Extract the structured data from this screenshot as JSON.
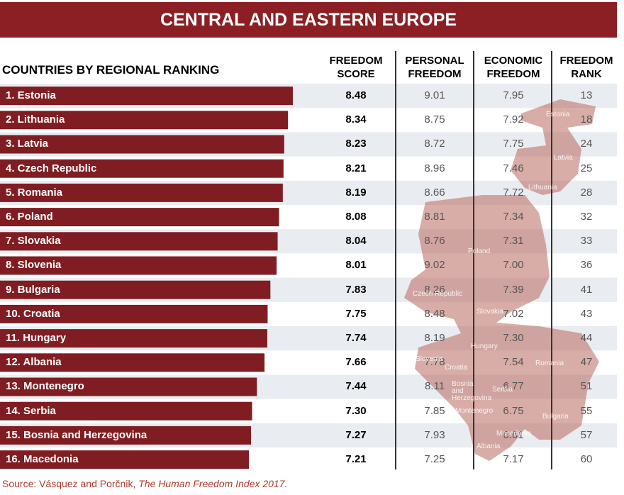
{
  "title": "CENTRAL AND EASTERN EUROPE",
  "chart_data": {
    "type": "bar",
    "orientation": "horizontal",
    "title": "COUNTRIES BY REGIONAL RANKING",
    "color": "#7f1d22",
    "categories": [
      "1. Estonia",
      "2. Lithuania",
      "3. Latvia",
      "4. Czech Republic",
      "5. Romania",
      "6. Poland",
      "7. Slovakia",
      "8. Slovenia",
      "9. Bulgaria",
      "10. Croatia",
      "11. Hungary",
      "12. Albania",
      "13. Montenegro",
      "14. Serbia",
      "15. Bosnia and Herzegovina",
      "16. Macedonia"
    ],
    "columns": [
      {
        "name": "FREEDOM SCORE",
        "values": [
          8.48,
          8.34,
          8.23,
          8.21,
          8.19,
          8.08,
          8.04,
          8.01,
          7.83,
          7.75,
          7.74,
          7.66,
          7.44,
          7.3,
          7.27,
          7.21
        ],
        "value_labels": [
          "8.48",
          "8.34",
          "8.23",
          "8.21",
          "8.19",
          "8.08",
          "8.04",
          "8.01",
          "7.83",
          "7.75",
          "7.74",
          "7.66",
          "7.44",
          "7.30",
          "7.27",
          "7.21"
        ]
      },
      {
        "name": "PERSONAL FREEDOM",
        "values": [
          9.01,
          8.75,
          8.72,
          8.96,
          8.66,
          8.81,
          8.76,
          9.02,
          8.26,
          8.48,
          8.19,
          7.78,
          8.11,
          7.85,
          7.93,
          7.25
        ],
        "value_labels": [
          "9.01",
          "8.75",
          "8.72",
          "8.96",
          "8.66",
          "8.81",
          "8.76",
          "9.02",
          "8.26",
          "8.48",
          "8.19",
          "7.78",
          "8.11",
          "7.85",
          "7.93",
          "7.25"
        ]
      },
      {
        "name": "ECONOMIC FREEDOM",
        "values": [
          7.95,
          7.92,
          7.75,
          7.46,
          7.72,
          7.34,
          7.31,
          7.0,
          7.39,
          7.02,
          7.3,
          7.54,
          6.77,
          6.75,
          6.61,
          7.17
        ],
        "value_labels": [
          "7.95",
          "7.92",
          "7.75",
          "7.46",
          "7.72",
          "7.34",
          "7.31",
          "7.00",
          "7.39",
          "7.02",
          "7.30",
          "7.54",
          "6.77",
          "6.75",
          "6.61",
          "7.17"
        ]
      },
      {
        "name": "FREEDOM RANK",
        "values": [
          13,
          18,
          24,
          25,
          28,
          32,
          33,
          36,
          41,
          43,
          44,
          47,
          51,
          55,
          57,
          60
        ]
      }
    ]
  },
  "map_labels": [
    "Estonia",
    "Latvia",
    "Lithuania",
    "Poland",
    "Czech Republic",
    "Slovakia",
    "Hungary",
    "Slovenia",
    "Croatia",
    "Romania",
    "Bosnia and Herzegovina",
    "Serbia",
    "Montenegro",
    "Bulgaria",
    "Macedonia",
    "Albania"
  ],
  "source": {
    "text": "Source: Vásquez and Porčnik, ",
    "italic": "The Human Freedom Index 2017."
  }
}
